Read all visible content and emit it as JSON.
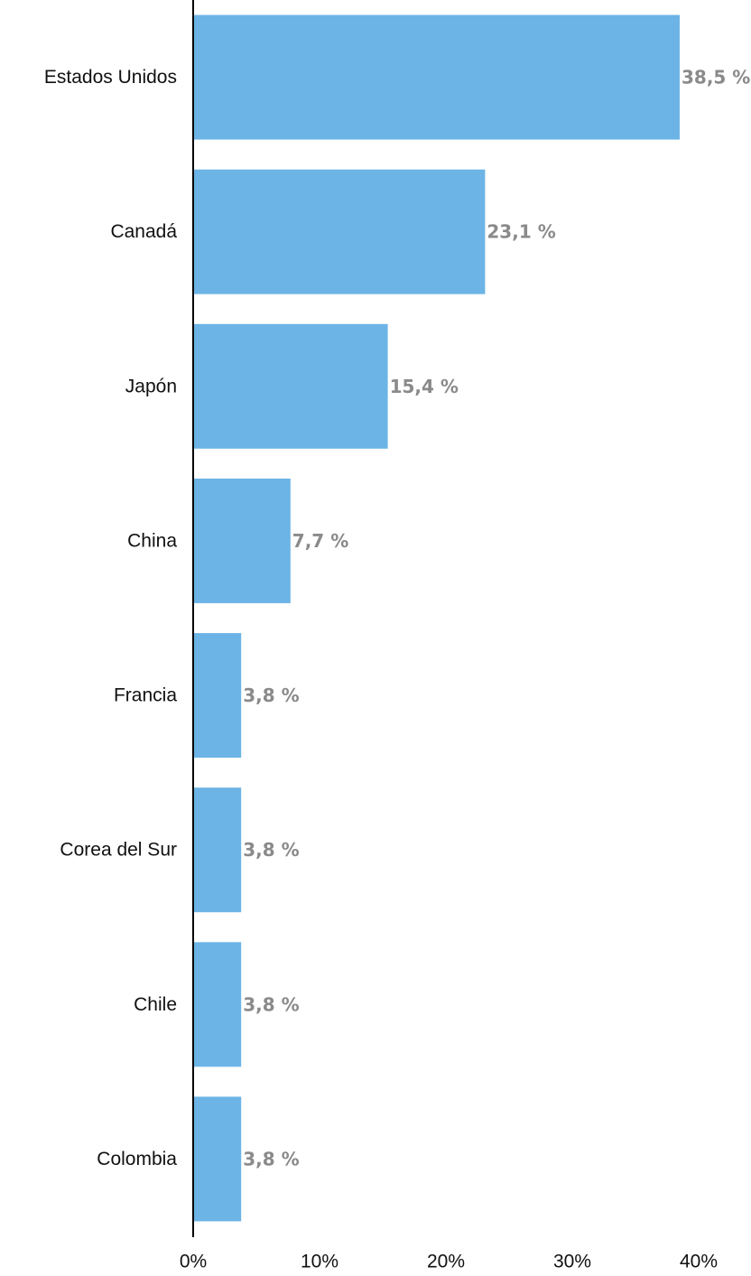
{
  "chart_data": {
    "type": "bar",
    "orientation": "horizontal",
    "title": "",
    "xlabel": "",
    "ylabel": "",
    "categories": [
      "Estados Unidos",
      "Canadá",
      "Japón",
      "China",
      "Francia",
      "Corea del Sur",
      "Chile",
      "Colombia"
    ],
    "values": [
      38.5,
      23.1,
      15.4,
      7.7,
      3.8,
      3.8,
      3.8,
      3.8
    ],
    "data_labels": [
      "38,5 %",
      "23,1 %",
      "15,4 %",
      "7,7 %",
      "3,8 %",
      "3,8 %",
      "3,8 %",
      "3,8 %"
    ],
    "xlim": [
      0,
      40
    ],
    "x_ticks": [
      0,
      10,
      20,
      30,
      40
    ],
    "x_tick_labels": [
      "0%",
      "10%",
      "20%",
      "30%",
      "40%"
    ],
    "grid": false,
    "legend": "none",
    "colors": {
      "bar": "#6cb4e6",
      "data_label": "#8a8a8a",
      "axis": "#000000",
      "text": "#111111"
    }
  }
}
